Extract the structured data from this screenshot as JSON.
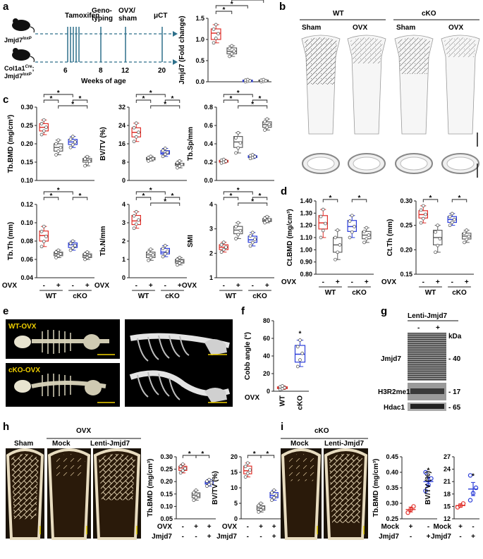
{
  "panel_labels": [
    "a",
    "b",
    "c",
    "d",
    "e",
    "f",
    "g",
    "h",
    "i"
  ],
  "timeline": {
    "mouse1": "Jmjd7",
    "mouse1_sup": "loxP",
    "mouse2_l1": "Col1a1",
    "mouse2_l1_sup": "Cre",
    "mouse2_l2": "Jmjd7",
    "mouse2_l2_sup": "loxP",
    "events": [
      "Tamoxifen",
      "Geno-\ntyping",
      "OVX/\nsham",
      "μCT"
    ],
    "weeks": [
      "6",
      "8",
      "12",
      "20"
    ],
    "xlabel": "Weeks of age"
  },
  "panel_b": {
    "wt": "WT",
    "cko": "cKO",
    "sham": "Sham",
    "ovx": "OVX"
  },
  "panel_e": {
    "top": "WT-OVX",
    "bottom": "cKO-OVX"
  },
  "panel_g": {
    "title": "Lenti-Jmjd7",
    "minus": "-",
    "plus": "+",
    "kda": "kDa",
    "bands": [
      {
        "name": "Jmjd7",
        "kda": "- 40"
      },
      {
        "name": "H3R2me1",
        "kda": "- 17"
      },
      {
        "name": "Hdac1",
        "kda": "- 65"
      }
    ]
  },
  "panel_h": {
    "sham": "Sham",
    "ovx": "OVX",
    "mock": "Mock",
    "lenti": "Lenti-Jmjd7"
  },
  "panel_i": {
    "cko": "cKO",
    "mock": "Mock",
    "lenti": "Lenti-Jmjd7"
  },
  "row_labels": {
    "ovx": "OVX",
    "jmjd7": "Jmjd7",
    "mock": "Mock",
    "minus": "-",
    "plus": "+",
    "wt": "WT",
    "cko": "cKO",
    "star": "*"
  },
  "colors": {
    "wt_sham": "#e0302a",
    "wt_ovx": "#606060",
    "cko_sham": "#2a3cd8",
    "cko_ovx": "#606060"
  },
  "chart_data": [
    {
      "id": "a-jmjd7",
      "type": "box",
      "ylabel": "Jmjd7 (Fold change)",
      "ylim": [
        0,
        1.5
      ],
      "ticks": [
        0.0,
        0.5,
        1.0,
        1.5
      ],
      "groups": [
        {
          "median": 1.15,
          "q1": 1.0,
          "q3": 1.25,
          "min": 0.92,
          "max": 1.35
        },
        {
          "median": 0.72,
          "q1": 0.66,
          "q3": 0.8,
          "min": 0.6,
          "max": 0.85
        },
        {
          "median": 0.02,
          "q1": 0.0,
          "q3": 0.04,
          "min": 0.0,
          "max": 0.05
        },
        {
          "median": 0.02,
          "q1": 0.0,
          "q3": 0.04,
          "min": 0.0,
          "max": 0.05
        }
      ]
    },
    {
      "id": "c-tbbmd",
      "type": "box",
      "ylabel": "Tb.BMD (mg/cm³)",
      "ylim": [
        0.1,
        0.3
      ],
      "ticks": [
        0.1,
        0.15,
        0.2,
        0.25,
        0.3
      ],
      "groups": [
        {
          "median": 0.245,
          "q1": 0.235,
          "q3": 0.255,
          "min": 0.225,
          "max": 0.265
        },
        {
          "median": 0.19,
          "q1": 0.18,
          "q3": 0.2,
          "min": 0.17,
          "max": 0.21
        },
        {
          "median": 0.205,
          "q1": 0.198,
          "q3": 0.212,
          "min": 0.19,
          "max": 0.22
        },
        {
          "median": 0.155,
          "q1": 0.15,
          "q3": 0.16,
          "min": 0.14,
          "max": 0.165
        }
      ]
    },
    {
      "id": "c-bvtv",
      "type": "box",
      "ylabel": "BV/TV (%)",
      "ylim": [
        0,
        32
      ],
      "ticks": [
        0,
        8,
        16,
        24,
        32
      ],
      "groups": [
        {
          "median": 21,
          "q1": 19,
          "q3": 23,
          "min": 17,
          "max": 25
        },
        {
          "median": 9.5,
          "q1": 9,
          "q3": 10,
          "min": 8.5,
          "max": 10.5
        },
        {
          "median": 12,
          "q1": 11.5,
          "q3": 13,
          "min": 10.5,
          "max": 14
        },
        {
          "median": 7,
          "q1": 6.5,
          "q3": 7.5,
          "min": 5.5,
          "max": 8.5
        }
      ]
    },
    {
      "id": "c-tbsp",
      "type": "box",
      "ylabel": "Tb.Sp/mm",
      "ylim": [
        0,
        0.8
      ],
      "ticks": [
        0.0,
        0.2,
        0.4,
        0.6,
        0.8
      ],
      "groups": [
        {
          "median": 0.21,
          "q1": 0.2,
          "q3": 0.22,
          "min": 0.19,
          "max": 0.23
        },
        {
          "median": 0.42,
          "q1": 0.36,
          "q3": 0.48,
          "min": 0.3,
          "max": 0.52
        },
        {
          "median": 0.26,
          "q1": 0.25,
          "q3": 0.27,
          "min": 0.24,
          "max": 0.28
        },
        {
          "median": 0.61,
          "q1": 0.58,
          "q3": 0.64,
          "min": 0.55,
          "max": 0.67
        }
      ]
    },
    {
      "id": "c-tbth",
      "type": "box",
      "ylabel": "Tb.Th (mm)",
      "ylim": [
        0.04,
        0.12
      ],
      "ticks": [
        0.04,
        0.06,
        0.08,
        0.1,
        0.12
      ],
      "groups": [
        {
          "median": 0.086,
          "q1": 0.08,
          "q3": 0.091,
          "min": 0.074,
          "max": 0.096
        },
        {
          "median": 0.066,
          "q1": 0.064,
          "q3": 0.068,
          "min": 0.062,
          "max": 0.07
        },
        {
          "median": 0.076,
          "q1": 0.073,
          "q3": 0.078,
          "min": 0.07,
          "max": 0.08
        },
        {
          "median": 0.064,
          "q1": 0.062,
          "q3": 0.066,
          "min": 0.06,
          "max": 0.068
        }
      ]
    },
    {
      "id": "c-tbn",
      "type": "box",
      "ylabel": "Tb.N/mm",
      "ylim": [
        0,
        4
      ],
      "ticks": [
        0,
        1,
        2,
        3,
        4
      ],
      "groups": [
        {
          "median": 3.1,
          "q1": 2.9,
          "q3": 3.4,
          "min": 2.7,
          "max": 3.6
        },
        {
          "median": 1.25,
          "q1": 1.1,
          "q3": 1.4,
          "min": 0.95,
          "max": 1.55
        },
        {
          "median": 1.4,
          "q1": 1.3,
          "q3": 1.6,
          "min": 1.15,
          "max": 1.75
        },
        {
          "median": 0.9,
          "q1": 0.8,
          "q3": 1.0,
          "min": 0.7,
          "max": 1.1
        }
      ]
    },
    {
      "id": "c-smi",
      "type": "box",
      "ylabel": "SMI",
      "ylim": [
        1,
        4
      ],
      "ticks": [
        1,
        2,
        3,
        4
      ],
      "groups": [
        {
          "median": 2.25,
          "q1": 2.15,
          "q3": 2.35,
          "min": 2.05,
          "max": 2.45
        },
        {
          "median": 2.95,
          "q1": 2.8,
          "q3": 3.1,
          "min": 2.6,
          "max": 3.25
        },
        {
          "median": 2.55,
          "q1": 2.45,
          "q3": 2.7,
          "min": 2.3,
          "max": 2.85
        },
        {
          "median": 3.35,
          "q1": 3.3,
          "q3": 3.42,
          "min": 3.25,
          "max": 3.5
        }
      ]
    },
    {
      "id": "d-ctbmd",
      "type": "box",
      "ylabel": "Ct.BMD (mg/cm³)",
      "ylim": [
        0.8,
        1.4
      ],
      "ticks": [
        0.8,
        0.9,
        1.0,
        1.1,
        1.2,
        1.3,
        1.4
      ],
      "groups": [
        {
          "median": 1.22,
          "q1": 1.17,
          "q3": 1.28,
          "min": 1.1,
          "max": 1.33
        },
        {
          "median": 1.04,
          "q1": 0.98,
          "q3": 1.1,
          "min": 0.92,
          "max": 1.16
        },
        {
          "median": 1.19,
          "q1": 1.15,
          "q3": 1.24,
          "min": 1.1,
          "max": 1.28
        },
        {
          "median": 1.12,
          "q1": 1.09,
          "q3": 1.15,
          "min": 1.06,
          "max": 1.18
        }
      ]
    },
    {
      "id": "d-ctth",
      "type": "box",
      "ylabel": "Ct.Th (mm)",
      "ylim": [
        0.15,
        0.3
      ],
      "ticks": [
        0.15,
        0.2,
        0.25,
        0.3
      ],
      "groups": [
        {
          "median": 0.272,
          "q1": 0.265,
          "q3": 0.28,
          "min": 0.255,
          "max": 0.29
        },
        {
          "median": 0.225,
          "q1": 0.21,
          "q3": 0.24,
          "min": 0.195,
          "max": 0.25
        },
        {
          "median": 0.262,
          "q1": 0.256,
          "q3": 0.268,
          "min": 0.25,
          "max": 0.274
        },
        {
          "median": 0.228,
          "q1": 0.222,
          "q3": 0.234,
          "min": 0.215,
          "max": 0.24
        }
      ]
    },
    {
      "id": "f-cobb",
      "type": "box",
      "ylabel": "Cobb angle (°)",
      "ylim": [
        0,
        80
      ],
      "ticks": [
        0,
        20,
        40,
        60,
        80
      ],
      "categories": [
        "WT",
        "cKO"
      ],
      "groups": [
        {
          "median": 4,
          "q1": 3,
          "q3": 5,
          "min": 2,
          "max": 6
        },
        {
          "median": 42,
          "q1": 33,
          "q3": 52,
          "min": 28,
          "max": 58
        }
      ]
    },
    {
      "id": "h-tbbmd",
      "type": "box",
      "ylabel": "Tb.BMD (mg/cm³)",
      "ylim": [
        0.05,
        0.3
      ],
      "ticks": [
        0.05,
        0.1,
        0.15,
        0.2,
        0.25,
        0.3
      ],
      "groups": [
        {
          "median": 0.255,
          "q1": 0.245,
          "q3": 0.262,
          "min": 0.235,
          "max": 0.27
        },
        {
          "median": 0.145,
          "q1": 0.135,
          "q3": 0.155,
          "min": 0.125,
          "max": 0.165
        },
        {
          "median": 0.195,
          "q1": 0.19,
          "q3": 0.2,
          "min": 0.182,
          "max": 0.208
        }
      ]
    },
    {
      "id": "h-bvtv",
      "type": "box",
      "ylabel": "BV/TV (%)",
      "ylim": [
        0,
        20
      ],
      "ticks": [
        0,
        5,
        10,
        15,
        20
      ],
      "groups": [
        {
          "median": 15.5,
          "q1": 14.5,
          "q3": 17,
          "min": 13.5,
          "max": 18
        },
        {
          "median": 3.5,
          "q1": 2.8,
          "q3": 4.2,
          "min": 2.2,
          "max": 5
        },
        {
          "median": 7.5,
          "q1": 6.8,
          "q3": 8.5,
          "min": 6,
          "max": 9.2
        }
      ]
    },
    {
      "id": "i-tbbmd",
      "type": "scatter-mean-sem",
      "ylabel": "Tb.BMD (mg/cm³)",
      "ylim": [
        0.25,
        0.45
      ],
      "ticks": [
        0.25,
        0.3,
        0.35,
        0.4,
        0.45
      ],
      "groups": [
        {
          "mean": 0.28,
          "sem": 0.008,
          "points": [
            0.27,
            0.28,
            0.29
          ]
        },
        {
          "mean": 0.37,
          "sem": 0.015,
          "points": [
            0.34,
            0.36,
            0.38,
            0.4
          ]
        }
      ]
    },
    {
      "id": "i-bvtv",
      "type": "scatter-mean-sem",
      "ylabel": "BV/TV (%)",
      "ylim": [
        12,
        27
      ],
      "ticks": [
        12,
        15,
        18,
        21,
        24,
        27
      ],
      "groups": [
        {
          "mean": 15.2,
          "sem": 0.4,
          "points": [
            14.8,
            15.2,
            15.7
          ]
        },
        {
          "mean": 19.2,
          "sem": 1.6,
          "points": [
            16.5,
            18.2,
            19.5,
            22.5
          ]
        }
      ]
    }
  ]
}
